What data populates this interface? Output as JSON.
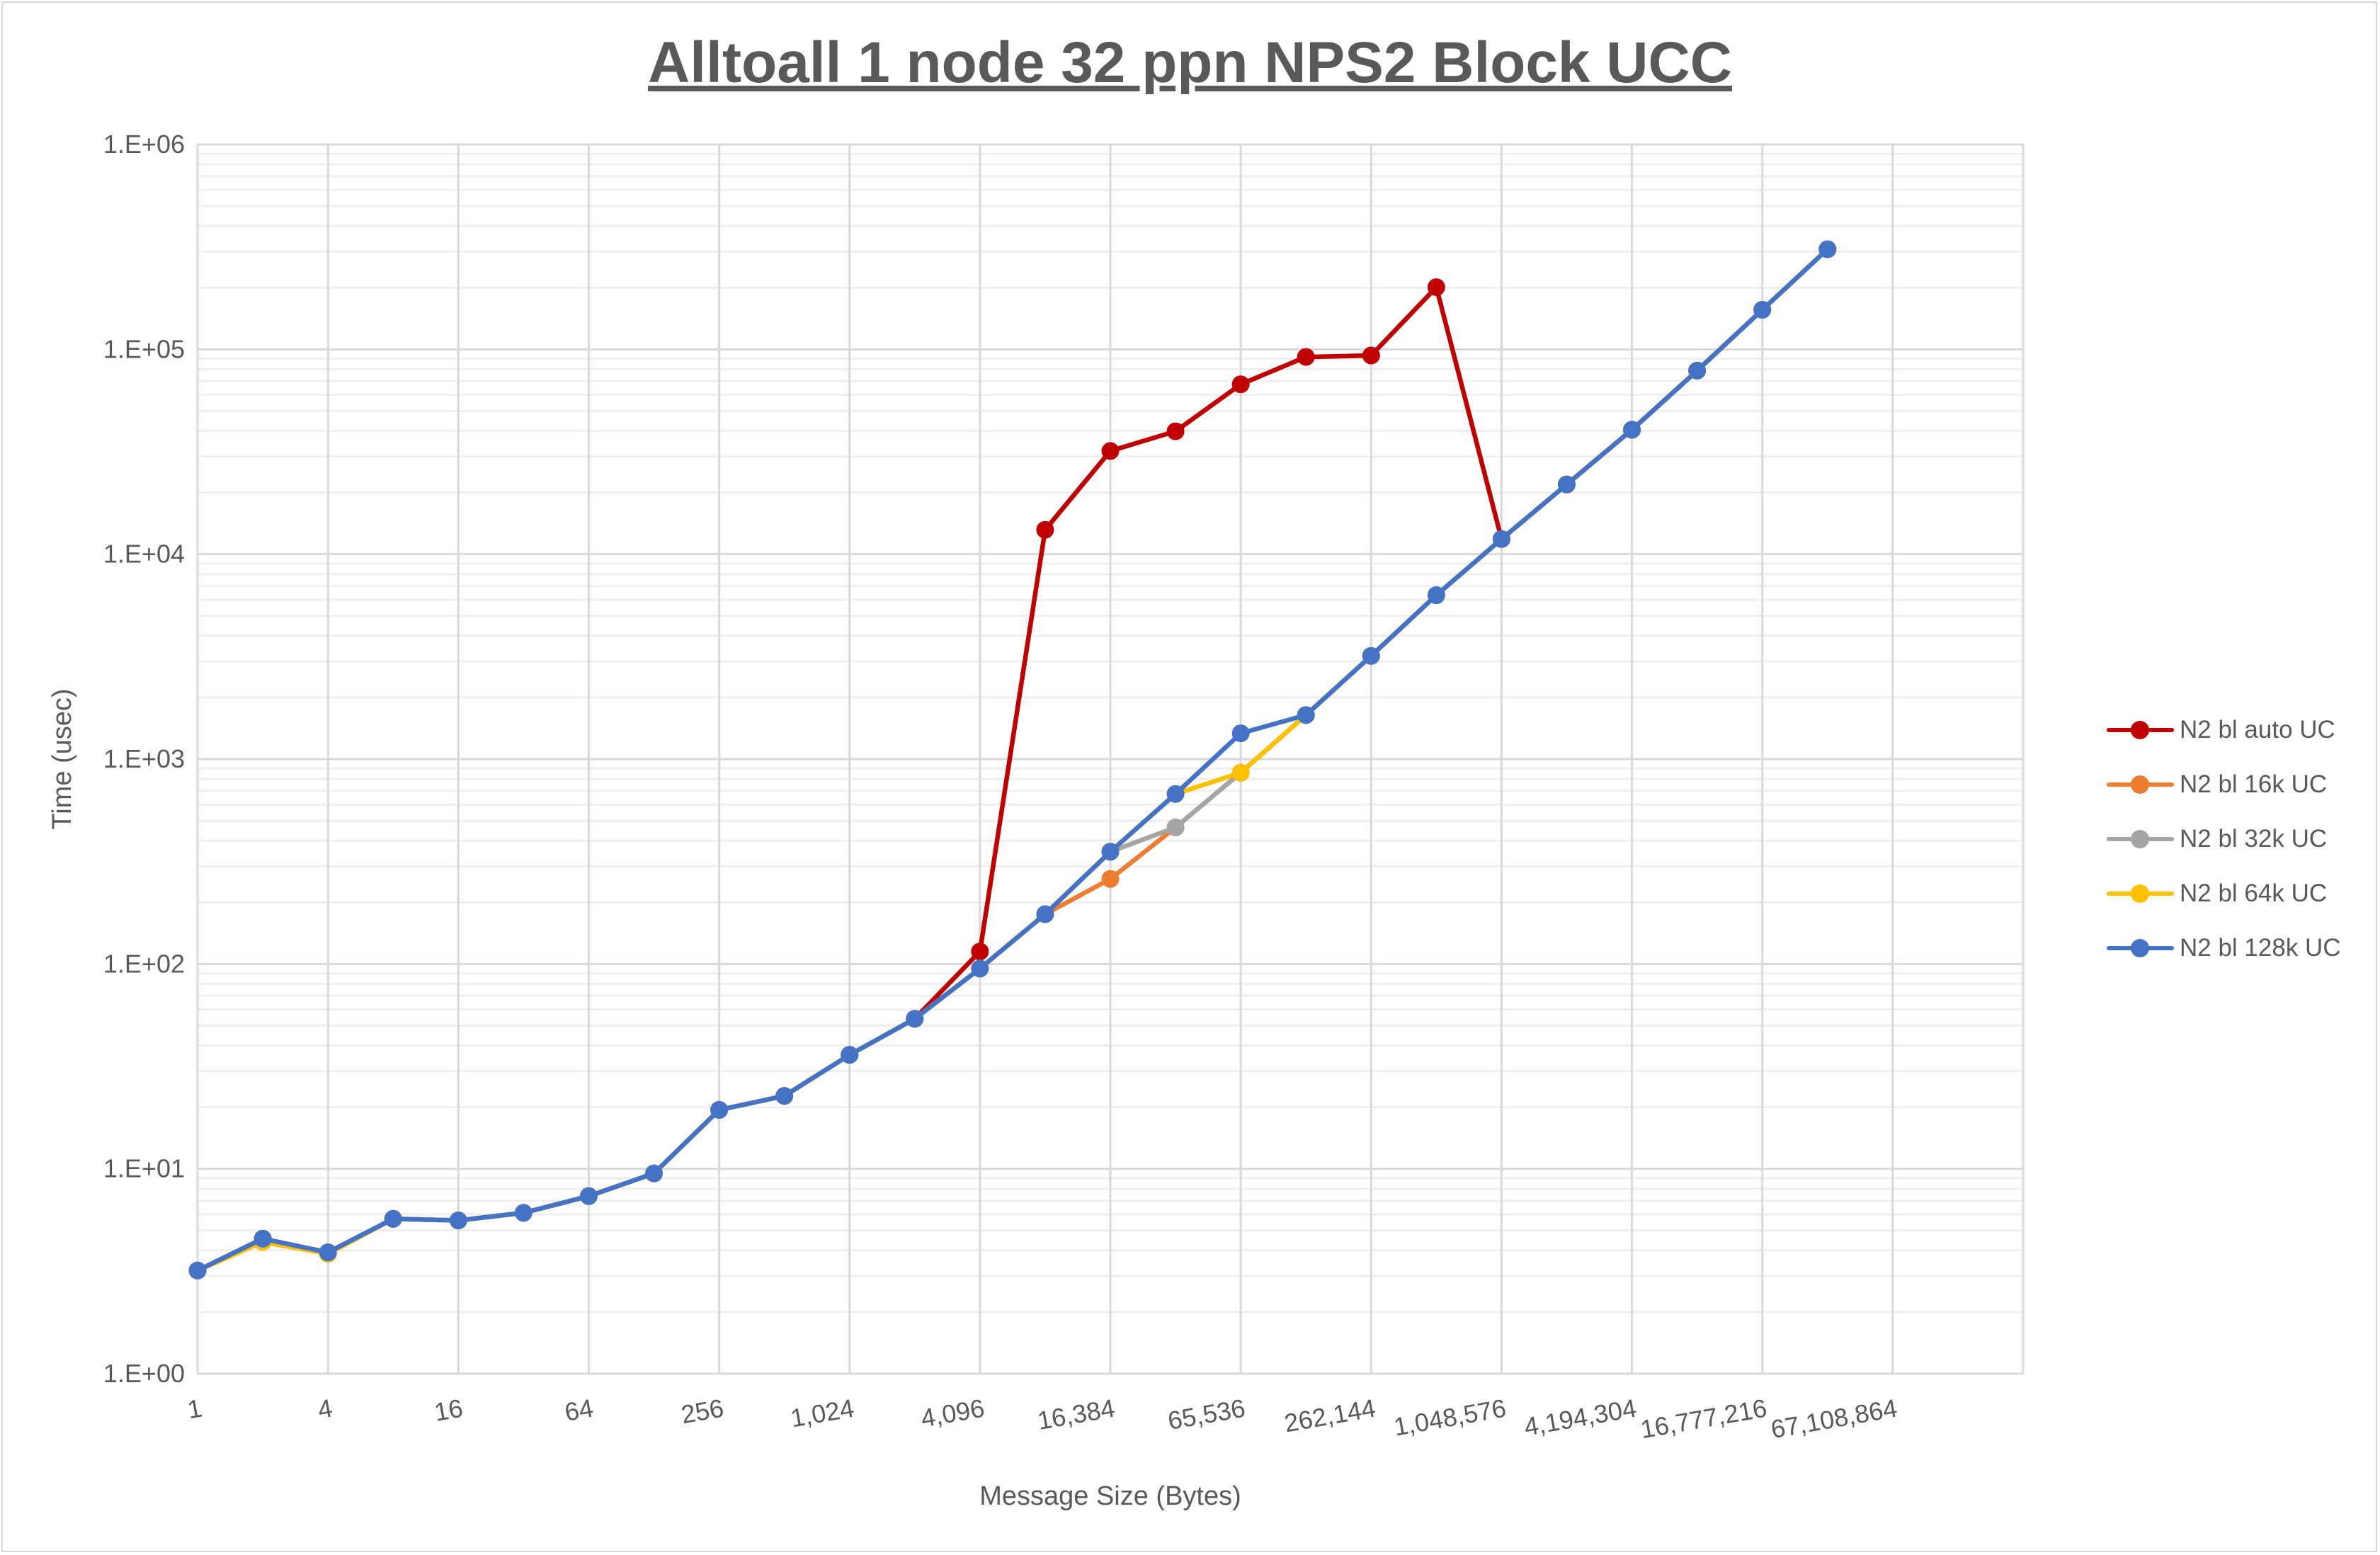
{
  "chart_data": {
    "type": "line",
    "title": "Alltoall 1 node 32 ppn NPS2 Block UCC",
    "xlabel": "Message Size (Bytes)",
    "ylabel": "Time (usec)",
    "xscale": "log2",
    "yscale": "log10",
    "xlim": [
      1,
      268435456
    ],
    "ylim": [
      1,
      1000000
    ],
    "grid": true,
    "legend_position": "right",
    "x_tick_labels": [
      "1",
      "4",
      "16",
      "64",
      "256",
      "1,024",
      "4,096",
      "16,384",
      "65,536",
      "262,144",
      "1,048,576",
      "4,194,304",
      "16,777,216",
      "67,108,864"
    ],
    "y_tick_labels": [
      "1.E+00",
      "1.E+01",
      "1.E+02",
      "1.E+03",
      "1.E+04",
      "1.E+05",
      "1.E+06"
    ],
    "x": [
      1,
      2,
      4,
      8,
      16,
      32,
      64,
      128,
      256,
      512,
      1024,
      2048,
      4096,
      8192,
      16384,
      32768,
      65536,
      131072,
      262144,
      524288,
      1048576,
      2097152,
      4194304,
      8388608,
      16777216,
      33554432,
      67108864
    ],
    "series": [
      {
        "name": "N2 bl auto UC",
        "color": "#c00000",
        "values": [
          3.19,
          4.56,
          3.91,
          5.7,
          5.6,
          6.1,
          7.36,
          9.5,
          19.4,
          22.7,
          36,
          54,
          115,
          13150,
          31900,
          39800,
          67500,
          91800,
          93300,
          201000,
          11860,
          21900,
          40500,
          78700,
          156000,
          308000,
          null
        ]
      },
      {
        "name": "N2 bl 16k UC",
        "color": "#ed7d31",
        "values": [
          3.19,
          4.4,
          3.85,
          5.7,
          5.6,
          6.1,
          7.36,
          9.5,
          19.4,
          22.7,
          36,
          54,
          95,
          175,
          260,
          464,
          858,
          1640,
          3190,
          6310,
          11860,
          21900,
          40500,
          78700,
          156000,
          308000,
          null
        ]
      },
      {
        "name": "N2 bl 32k UC",
        "color": "#a5a5a5",
        "values": [
          3.19,
          4.4,
          3.85,
          5.7,
          5.6,
          6.1,
          7.36,
          9.5,
          19.4,
          22.7,
          36,
          54,
          95,
          175,
          353,
          464,
          858,
          1640,
          3190,
          6310,
          11860,
          21900,
          40500,
          78700,
          156000,
          308000,
          null
        ]
      },
      {
        "name": "N2 bl 64k UC",
        "color": "#ffc000",
        "values": [
          3.19,
          4.4,
          3.85,
          5.7,
          5.6,
          6.1,
          7.36,
          9.5,
          19.4,
          22.7,
          36,
          54,
          95,
          175,
          353,
          676,
          858,
          1640,
          3190,
          6310,
          11860,
          21900,
          40500,
          78700,
          156000,
          308000,
          null
        ]
      },
      {
        "name": "N2 bl 128k UC",
        "color": "#4472c4",
        "values": [
          3.19,
          4.56,
          3.91,
          5.7,
          5.6,
          6.1,
          7.36,
          9.5,
          19.4,
          22.7,
          36,
          54,
          95,
          175,
          353,
          676,
          1336,
          1640,
          3190,
          6310,
          11860,
          21900,
          40500,
          78700,
          156000,
          308000,
          null
        ]
      }
    ]
  }
}
